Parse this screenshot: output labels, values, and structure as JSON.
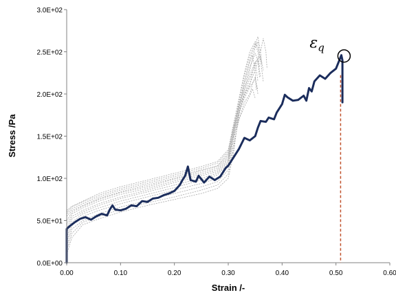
{
  "chart_data": {
    "type": "line",
    "xlabel": "Strain /-",
    "ylabel": "Stress /Pa",
    "xlim": [
      0,
      0.6
    ],
    "ylim": [
      0,
      300
    ],
    "x_ticks": [
      "0.00",
      "0.10",
      "0.20",
      "0.30",
      "0.40",
      "0.50",
      "0.60"
    ],
    "y_ticks": [
      "0.0E+00",
      "5.0E+01",
      "1.0E+02",
      "1.5E+02",
      "2.0E+02",
      "2.5E+02",
      "3.0E+02"
    ],
    "grid": false,
    "annotation": {
      "symbol": "ε",
      "subscript": "q",
      "x": 0.515,
      "y": 245
    },
    "colors": {
      "main": "#1b2d5c",
      "thin": "#a8a8a8",
      "marker_line": "#c0502a"
    },
    "series": [
      {
        "style": "bold",
        "points": [
          [
            0.0,
            0
          ],
          [
            0.0,
            40
          ],
          [
            0.005,
            43
          ],
          [
            0.015,
            48
          ],
          [
            0.025,
            52
          ],
          [
            0.035,
            54
          ],
          [
            0.045,
            51
          ],
          [
            0.055,
            55
          ],
          [
            0.065,
            58
          ],
          [
            0.075,
            56
          ],
          [
            0.08,
            63
          ],
          [
            0.085,
            68
          ],
          [
            0.09,
            63
          ],
          [
            0.1,
            62
          ],
          [
            0.11,
            64
          ],
          [
            0.12,
            68
          ],
          [
            0.13,
            67
          ],
          [
            0.14,
            73
          ],
          [
            0.15,
            72
          ],
          [
            0.16,
            76
          ],
          [
            0.17,
            77
          ],
          [
            0.18,
            80
          ],
          [
            0.19,
            82
          ],
          [
            0.2,
            85
          ],
          [
            0.21,
            92
          ],
          [
            0.215,
            98
          ],
          [
            0.22,
            103
          ],
          [
            0.225,
            114
          ],
          [
            0.23,
            98
          ],
          [
            0.24,
            96
          ],
          [
            0.245,
            103
          ],
          [
            0.255,
            95
          ],
          [
            0.265,
            102
          ],
          [
            0.275,
            98
          ],
          [
            0.285,
            102
          ],
          [
            0.295,
            112
          ],
          [
            0.3,
            115
          ],
          [
            0.31,
            125
          ],
          [
            0.32,
            135
          ],
          [
            0.33,
            148
          ],
          [
            0.34,
            145
          ],
          [
            0.35,
            150
          ],
          [
            0.355,
            160
          ],
          [
            0.36,
            168
          ],
          [
            0.37,
            167
          ],
          [
            0.375,
            172
          ],
          [
            0.385,
            170
          ],
          [
            0.39,
            178
          ],
          [
            0.4,
            188
          ],
          [
            0.405,
            199
          ],
          [
            0.41,
            196
          ],
          [
            0.42,
            192
          ],
          [
            0.43,
            193
          ],
          [
            0.44,
            198
          ],
          [
            0.445,
            192
          ],
          [
            0.45,
            207
          ],
          [
            0.455,
            203
          ],
          [
            0.46,
            215
          ],
          [
            0.47,
            222
          ],
          [
            0.48,
            218
          ],
          [
            0.49,
            225
          ],
          [
            0.5,
            230
          ],
          [
            0.505,
            238
          ],
          [
            0.51,
            246
          ],
          [
            0.512,
            240
          ],
          [
            0.512,
            190
          ]
        ]
      },
      {
        "style": "thin",
        "points": [
          [
            0.0,
            10
          ],
          [
            0.01,
            30
          ],
          [
            0.03,
            45
          ],
          [
            0.06,
            52
          ],
          [
            0.1,
            60
          ],
          [
            0.15,
            68
          ],
          [
            0.2,
            75
          ],
          [
            0.25,
            82
          ],
          [
            0.28,
            88
          ],
          [
            0.3,
            100
          ],
          [
            0.31,
            130
          ],
          [
            0.32,
            180
          ],
          [
            0.33,
            215
          ],
          [
            0.34,
            238
          ],
          [
            0.345,
            246
          ],
          [
            0.35,
            225
          ],
          [
            0.352,
            205
          ]
        ]
      },
      {
        "style": "thin",
        "points": [
          [
            0.0,
            15
          ],
          [
            0.01,
            35
          ],
          [
            0.03,
            48
          ],
          [
            0.06,
            55
          ],
          [
            0.1,
            63
          ],
          [
            0.15,
            71
          ],
          [
            0.2,
            78
          ],
          [
            0.25,
            86
          ],
          [
            0.28,
            92
          ],
          [
            0.3,
            105
          ],
          [
            0.31,
            135
          ],
          [
            0.32,
            175
          ],
          [
            0.33,
            205
          ],
          [
            0.34,
            228
          ],
          [
            0.35,
            255
          ],
          [
            0.355,
            262
          ],
          [
            0.36,
            240
          ],
          [
            0.365,
            215
          ]
        ]
      },
      {
        "style": "thin",
        "points": [
          [
            0.0,
            20
          ],
          [
            0.01,
            40
          ],
          [
            0.03,
            50
          ],
          [
            0.06,
            58
          ],
          [
            0.1,
            66
          ],
          [
            0.15,
            74
          ],
          [
            0.2,
            82
          ],
          [
            0.25,
            90
          ],
          [
            0.28,
            96
          ],
          [
            0.3,
            110
          ],
          [
            0.31,
            140
          ],
          [
            0.32,
            170
          ],
          [
            0.33,
            190
          ],
          [
            0.34,
            200
          ],
          [
            0.345,
            212
          ],
          [
            0.35,
            220
          ],
          [
            0.355,
            200
          ]
        ]
      },
      {
        "style": "thin",
        "points": [
          [
            0.0,
            25
          ],
          [
            0.01,
            44
          ],
          [
            0.03,
            55
          ],
          [
            0.06,
            62
          ],
          [
            0.1,
            70
          ],
          [
            0.15,
            78
          ],
          [
            0.2,
            86
          ],
          [
            0.25,
            94
          ],
          [
            0.28,
            100
          ],
          [
            0.3,
            115
          ],
          [
            0.31,
            145
          ],
          [
            0.32,
            178
          ],
          [
            0.33,
            200
          ],
          [
            0.34,
            218
          ],
          [
            0.35,
            235
          ],
          [
            0.36,
            250
          ],
          [
            0.365,
            266
          ],
          [
            0.37,
            250
          ],
          [
            0.372,
            230
          ]
        ]
      },
      {
        "style": "thin",
        "points": [
          [
            0.0,
            30
          ],
          [
            0.01,
            48
          ],
          [
            0.03,
            58
          ],
          [
            0.06,
            65
          ],
          [
            0.1,
            73
          ],
          [
            0.15,
            81
          ],
          [
            0.2,
            89
          ],
          [
            0.25,
            98
          ],
          [
            0.28,
            104
          ],
          [
            0.3,
            118
          ],
          [
            0.31,
            150
          ],
          [
            0.32,
            185
          ],
          [
            0.33,
            210
          ],
          [
            0.34,
            232
          ],
          [
            0.35,
            248
          ],
          [
            0.355,
            240
          ],
          [
            0.358,
            220
          ]
        ]
      },
      {
        "style": "thin",
        "points": [
          [
            0.0,
            35
          ],
          [
            0.01,
            52
          ],
          [
            0.03,
            60
          ],
          [
            0.06,
            68
          ],
          [
            0.1,
            76
          ],
          [
            0.15,
            84
          ],
          [
            0.2,
            92
          ],
          [
            0.25,
            100
          ],
          [
            0.28,
            106
          ],
          [
            0.3,
            120
          ],
          [
            0.31,
            152
          ],
          [
            0.32,
            180
          ],
          [
            0.33,
            198
          ],
          [
            0.34,
            210
          ],
          [
            0.345,
            225
          ],
          [
            0.35,
            238
          ],
          [
            0.355,
            215
          ]
        ]
      },
      {
        "style": "thin",
        "points": [
          [
            0.0,
            40
          ],
          [
            0.01,
            55
          ],
          [
            0.03,
            62
          ],
          [
            0.06,
            70
          ],
          [
            0.1,
            78
          ],
          [
            0.15,
            86
          ],
          [
            0.2,
            95
          ],
          [
            0.25,
            103
          ],
          [
            0.28,
            108
          ],
          [
            0.3,
            122
          ],
          [
            0.31,
            155
          ],
          [
            0.32,
            188
          ],
          [
            0.33,
            215
          ],
          [
            0.34,
            240
          ],
          [
            0.35,
            258
          ],
          [
            0.355,
            268
          ],
          [
            0.36,
            250
          ],
          [
            0.362,
            235
          ]
        ]
      },
      {
        "style": "thin",
        "points": [
          [
            0.0,
            45
          ],
          [
            0.01,
            58
          ],
          [
            0.03,
            65
          ],
          [
            0.06,
            73
          ],
          [
            0.1,
            81
          ],
          [
            0.15,
            88
          ],
          [
            0.2,
            97
          ],
          [
            0.25,
            105
          ],
          [
            0.28,
            110
          ],
          [
            0.3,
            124
          ],
          [
            0.31,
            150
          ],
          [
            0.32,
            170
          ],
          [
            0.33,
            185
          ],
          [
            0.34,
            198
          ],
          [
            0.345,
            206
          ],
          [
            0.35,
            195
          ]
        ]
      },
      {
        "style": "thin",
        "points": [
          [
            0.0,
            50
          ],
          [
            0.01,
            60
          ],
          [
            0.03,
            67
          ],
          [
            0.06,
            75
          ],
          [
            0.1,
            83
          ],
          [
            0.15,
            90
          ],
          [
            0.2,
            99
          ],
          [
            0.25,
            107
          ],
          [
            0.28,
            112
          ],
          [
            0.3,
            126
          ],
          [
            0.31,
            158
          ],
          [
            0.32,
            192
          ],
          [
            0.33,
            222
          ],
          [
            0.34,
            245
          ],
          [
            0.35,
            260
          ],
          [
            0.355,
            250
          ],
          [
            0.358,
            232
          ]
        ]
      },
      {
        "style": "thin",
        "points": [
          [
            0.0,
            55
          ],
          [
            0.01,
            62
          ],
          [
            0.03,
            68
          ],
          [
            0.06,
            76
          ],
          [
            0.1,
            84
          ],
          [
            0.15,
            92
          ],
          [
            0.2,
            100
          ],
          [
            0.25,
            109
          ],
          [
            0.28,
            114
          ],
          [
            0.3,
            128
          ],
          [
            0.31,
            160
          ],
          [
            0.32,
            185
          ],
          [
            0.33,
            200
          ],
          [
            0.34,
            212
          ],
          [
            0.35,
            228
          ],
          [
            0.355,
            240
          ],
          [
            0.36,
            220
          ]
        ]
      },
      {
        "style": "thin",
        "points": [
          [
            0.0,
            58
          ],
          [
            0.01,
            64
          ],
          [
            0.03,
            70
          ],
          [
            0.06,
            78
          ],
          [
            0.1,
            86
          ],
          [
            0.15,
            94
          ],
          [
            0.2,
            102
          ],
          [
            0.25,
            110
          ],
          [
            0.28,
            115
          ],
          [
            0.3,
            130
          ],
          [
            0.31,
            158
          ],
          [
            0.32,
            178
          ],
          [
            0.33,
            195
          ],
          [
            0.34,
            208
          ],
          [
            0.35,
            218
          ],
          [
            0.355,
            205
          ]
        ]
      },
      {
        "style": "thin",
        "points": [
          [
            0.0,
            60
          ],
          [
            0.01,
            66
          ],
          [
            0.03,
            72
          ],
          [
            0.06,
            80
          ],
          [
            0.1,
            88
          ],
          [
            0.15,
            96
          ],
          [
            0.2,
            104
          ],
          [
            0.25,
            112
          ],
          [
            0.28,
            118
          ],
          [
            0.3,
            132
          ],
          [
            0.31,
            162
          ],
          [
            0.32,
            188
          ],
          [
            0.33,
            205
          ],
          [
            0.34,
            222
          ],
          [
            0.35,
            238
          ],
          [
            0.36,
            245
          ],
          [
            0.365,
            228
          ]
        ]
      },
      {
        "style": "thin",
        "points": [
          [
            0.0,
            62
          ],
          [
            0.01,
            67
          ],
          [
            0.03,
            73
          ],
          [
            0.06,
            82
          ],
          [
            0.1,
            90
          ],
          [
            0.15,
            98
          ],
          [
            0.2,
            106
          ],
          [
            0.25,
            114
          ],
          [
            0.28,
            120
          ],
          [
            0.3,
            134
          ],
          [
            0.31,
            165
          ],
          [
            0.32,
            195
          ],
          [
            0.33,
            225
          ],
          [
            0.34,
            250
          ],
          [
            0.35,
            262
          ],
          [
            0.355,
            255
          ],
          [
            0.36,
            238
          ]
        ]
      }
    ]
  }
}
